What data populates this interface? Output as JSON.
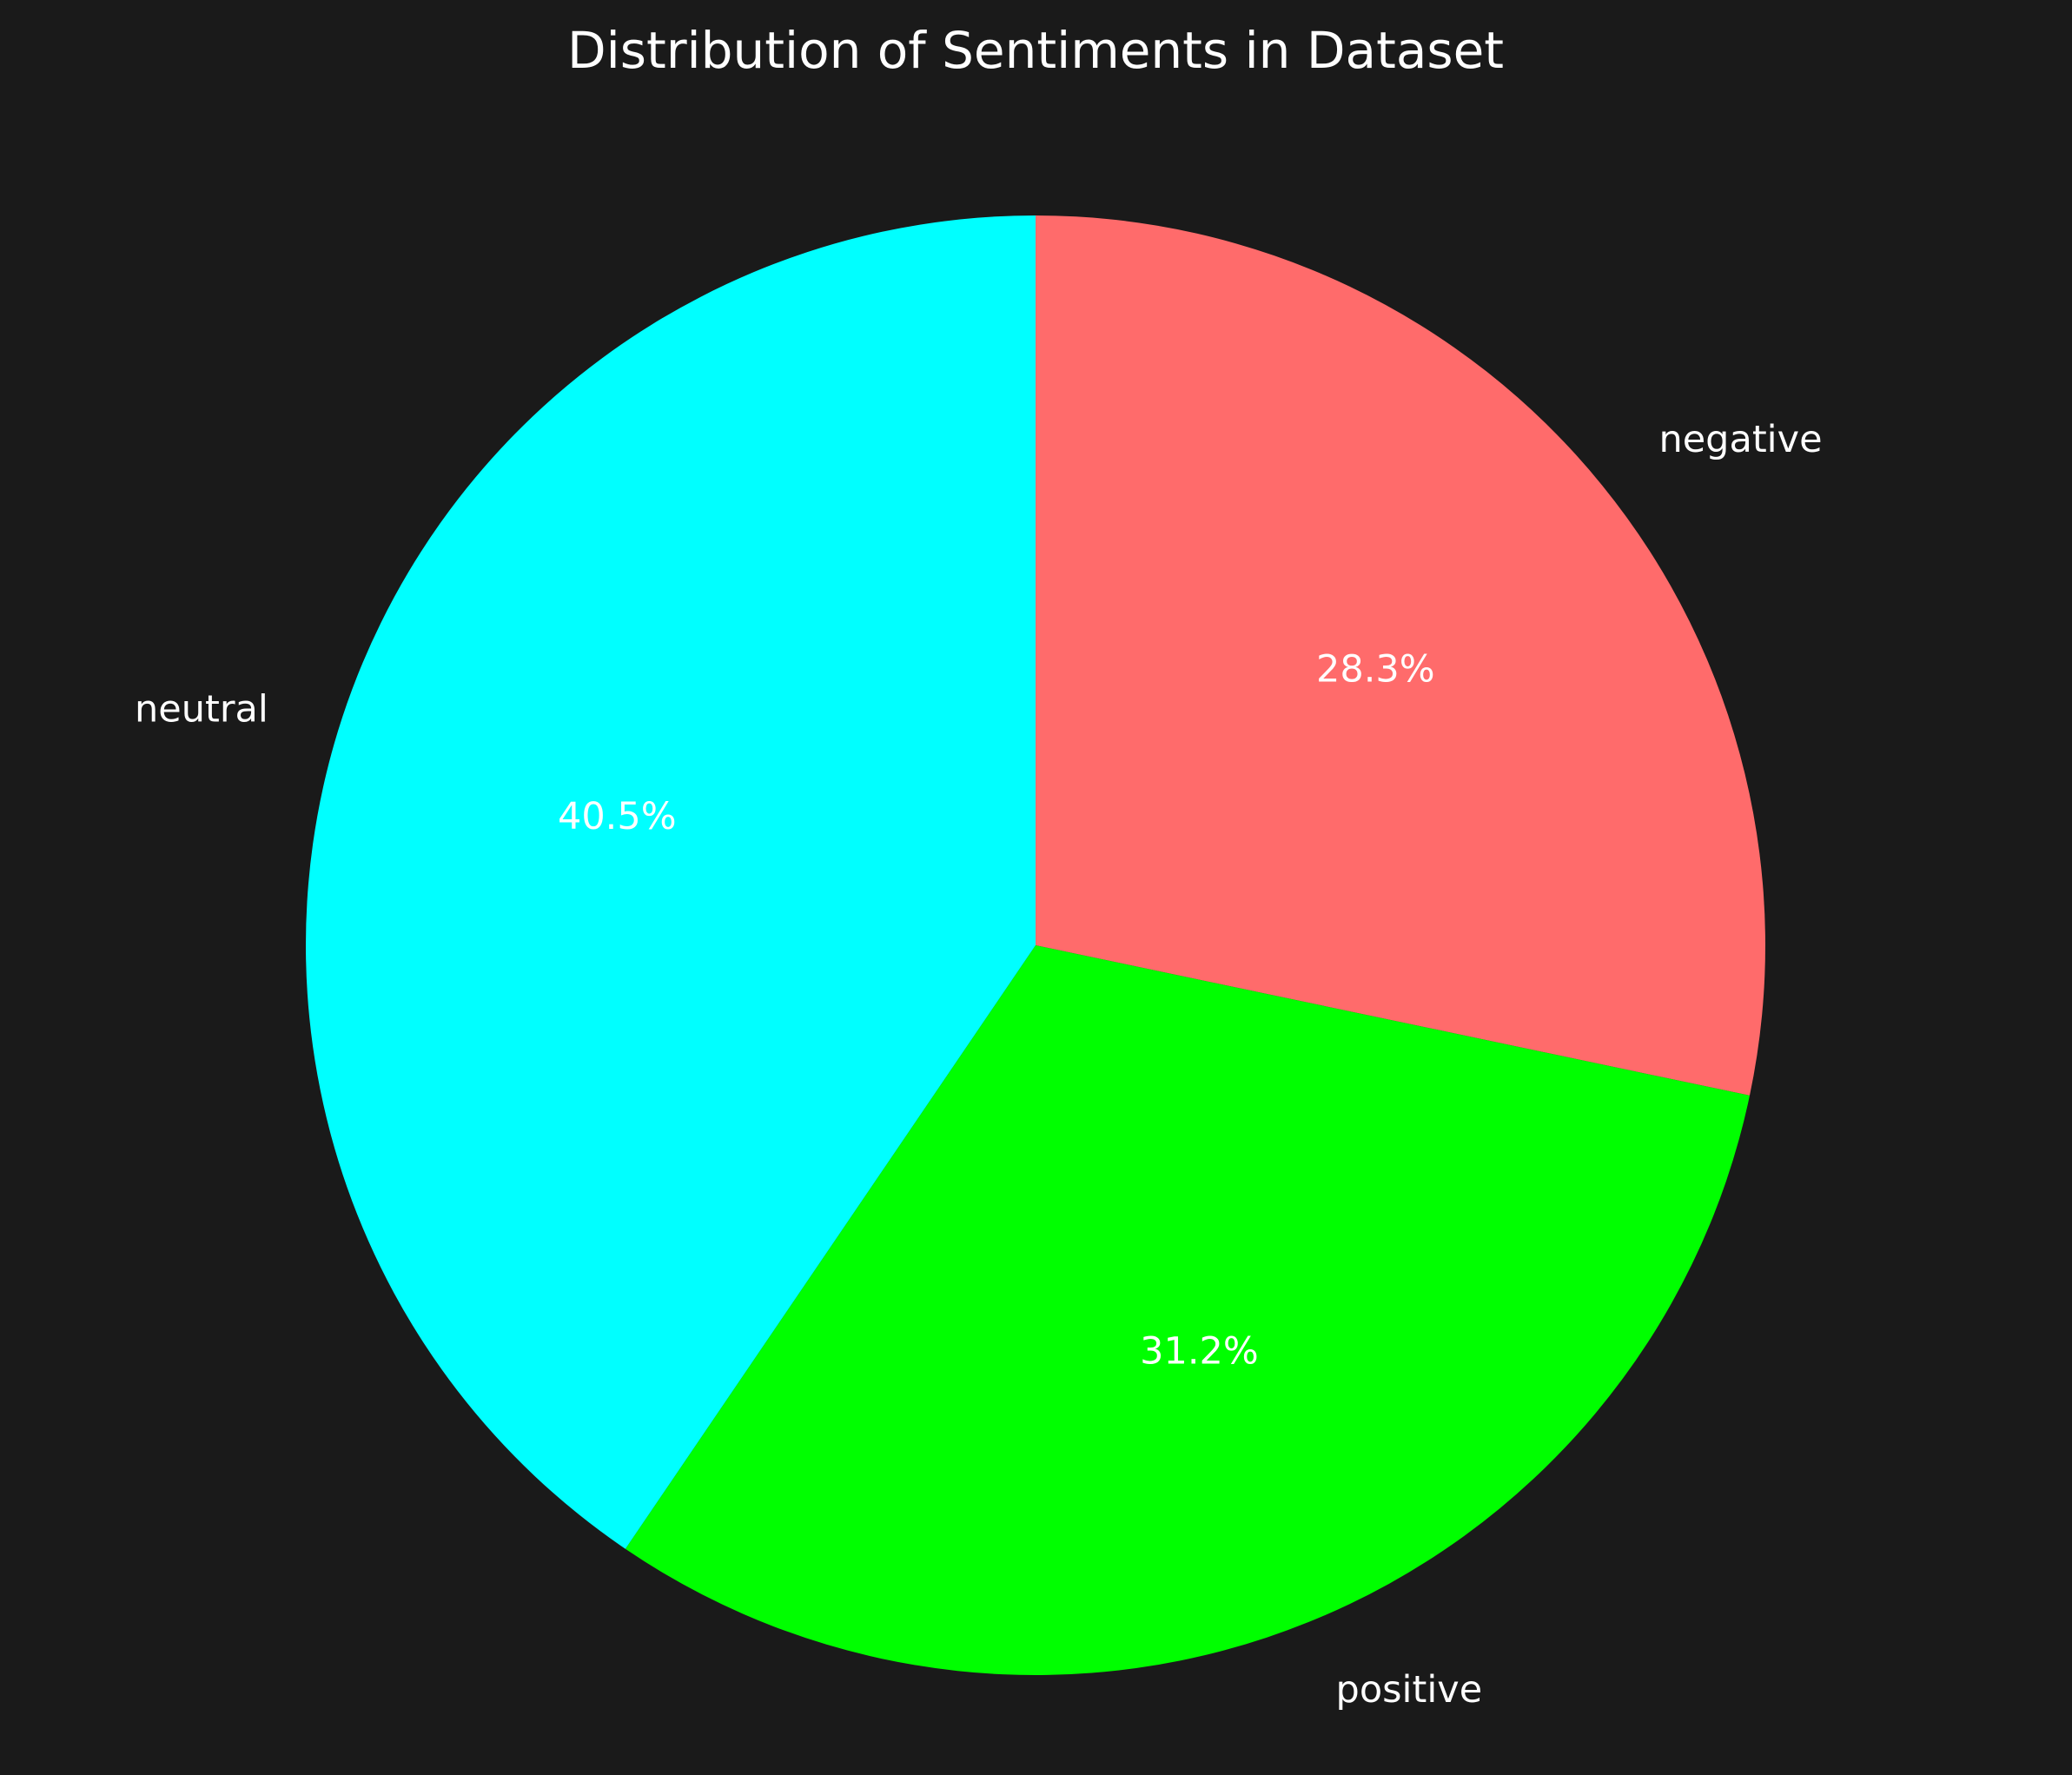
{
  "chart_data": {
    "type": "pie",
    "title": "Distribution of Sentiments in Dataset",
    "start_angle_deg": 90,
    "direction": "clockwise",
    "slices": [
      {
        "label": "negative",
        "value": 28.3,
        "pct_label": "28.3%",
        "color": "#ff6b6b"
      },
      {
        "label": "positive",
        "value": 31.2,
        "pct_label": "31.2%",
        "color": "#00ff00"
      },
      {
        "label": "neutral",
        "value": 40.5,
        "pct_label": "40.5%",
        "color": "#00ffff"
      }
    ]
  },
  "colors": {
    "background": "#1a1a1a",
    "text": "#ffffff"
  }
}
